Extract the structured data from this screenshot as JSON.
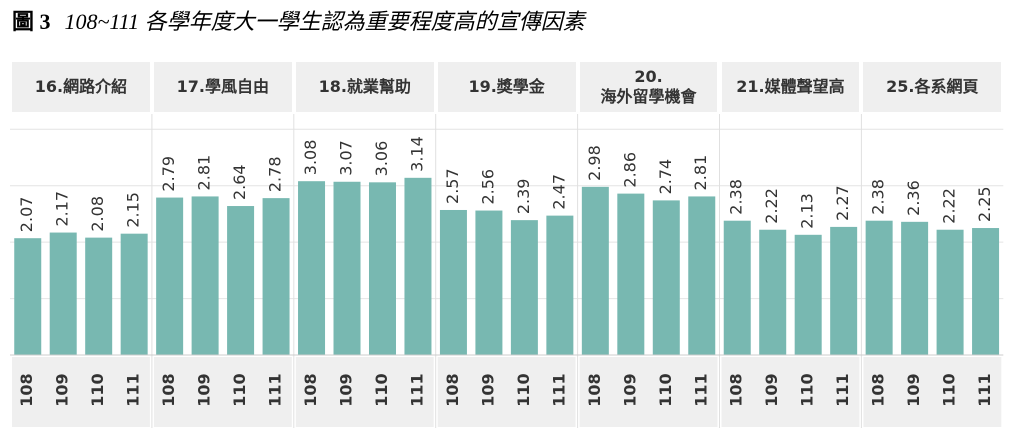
{
  "figure_label": "圖 3",
  "chart_data": {
    "type": "bar",
    "title": "108~111 各學年度大一學生認為重要程度高的宣傳因素",
    "categories": [
      "108",
      "109",
      "110",
      "111"
    ],
    "panels": [
      {
        "name": "16.網路介紹",
        "values": [
          2.07,
          2.17,
          2.08,
          2.15
        ]
      },
      {
        "name": "17.學風自由",
        "values": [
          2.79,
          2.81,
          2.64,
          2.78
        ]
      },
      {
        "name": "18.就業幫助",
        "values": [
          3.08,
          3.07,
          3.06,
          3.14
        ]
      },
      {
        "name": "19.獎學金",
        "values": [
          2.57,
          2.56,
          2.39,
          2.47
        ]
      },
      {
        "name": "20.\n海外留學機會",
        "values": [
          2.98,
          2.86,
          2.74,
          2.81
        ]
      },
      {
        "name": "21.媒體聲望高",
        "values": [
          2.38,
          2.22,
          2.13,
          2.27
        ]
      },
      {
        "name": "25.各系網頁",
        "values": [
          2.38,
          2.36,
          2.22,
          2.25
        ]
      }
    ],
    "color": "#78b8b1",
    "ylim": [
      0,
      4.2
    ],
    "gridlines": [
      1,
      2,
      3,
      4
    ]
  }
}
